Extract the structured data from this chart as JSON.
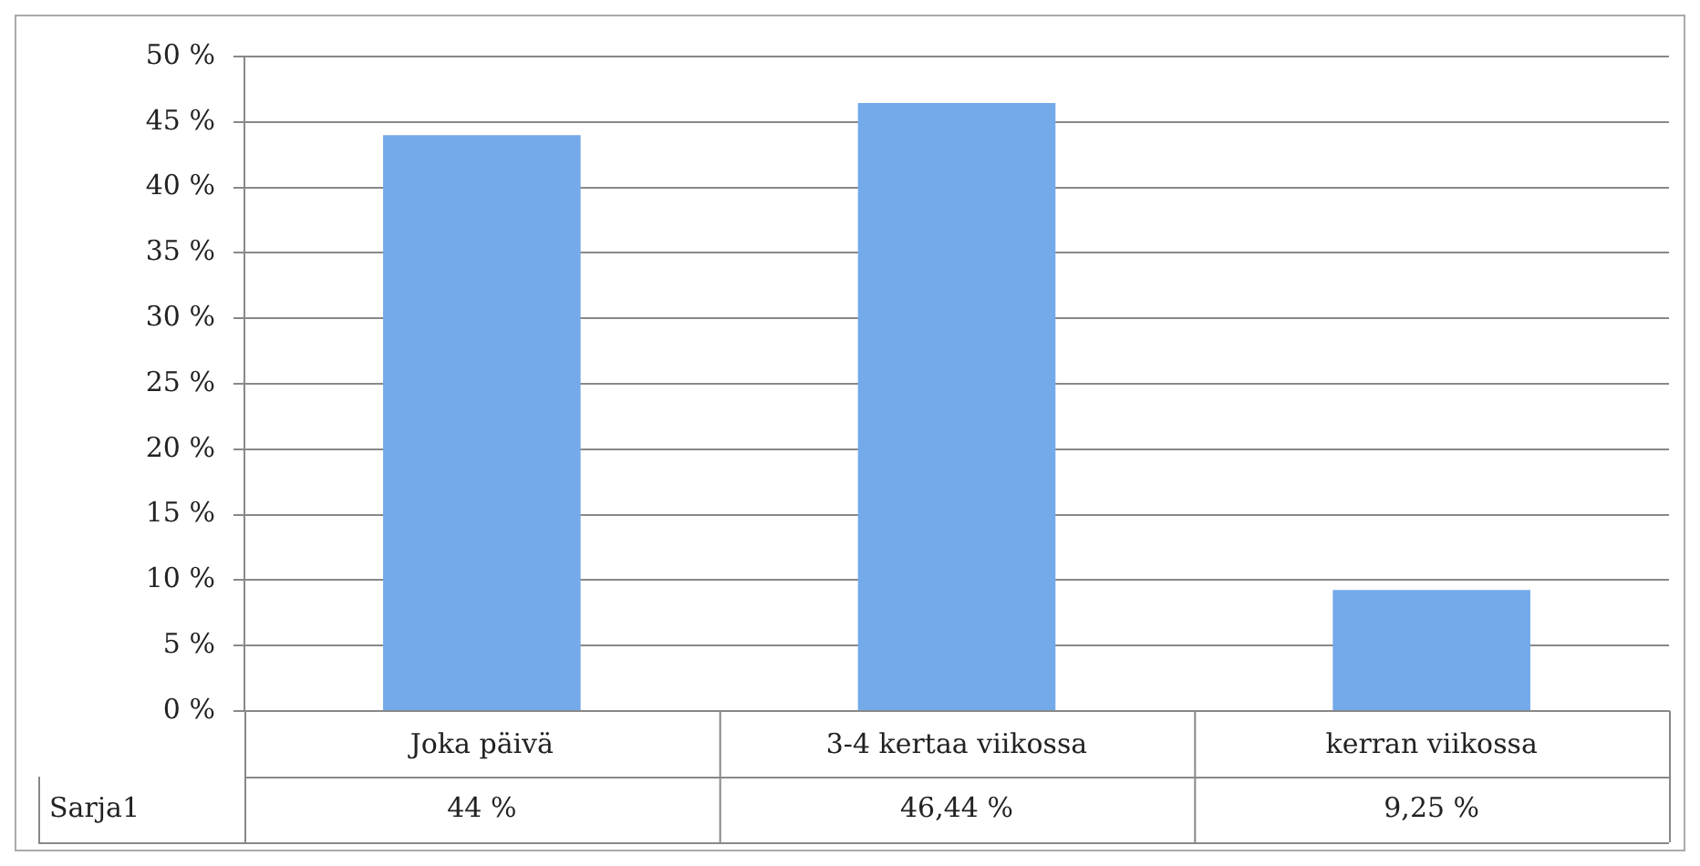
{
  "chart_data": {
    "type": "bar",
    "categories": [
      "Joka päivä",
      "3-4 kertaa viikossa",
      "kerran viikossa"
    ],
    "series": [
      {
        "name": "Sarja1",
        "color": "#74a9ea",
        "values": [
          44,
          46.44,
          9.25
        ],
        "value_labels": [
          "44 %",
          "46,44 %",
          "9,25 %"
        ]
      }
    ],
    "ylim": [
      0,
      50
    ],
    "yticks": [
      {
        "value": 0,
        "label": "0 %"
      },
      {
        "value": 5,
        "label": "5 %"
      },
      {
        "value": 10,
        "label": "10 %"
      },
      {
        "value": 15,
        "label": "15 %"
      },
      {
        "value": 20,
        "label": "20 %"
      },
      {
        "value": 25,
        "label": "25 %"
      },
      {
        "value": 30,
        "label": "30 %"
      },
      {
        "value": 35,
        "label": "35 %"
      },
      {
        "value": 40,
        "label": "40 %"
      },
      {
        "value": 45,
        "label": "45 %"
      },
      {
        "value": 50,
        "label": "50 %"
      }
    ],
    "grid": "y"
  }
}
